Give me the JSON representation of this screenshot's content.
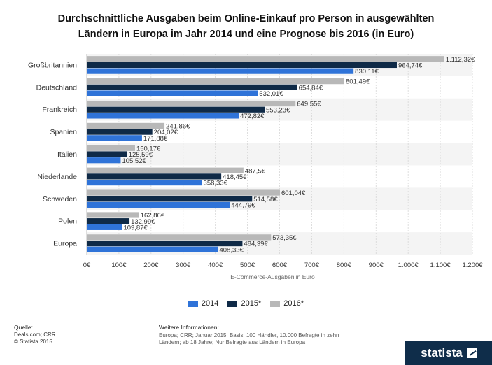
{
  "title": {
    "line1": "Durchschnittliche Ausgaben beim Online-Einkauf pro Person in ausgewählten",
    "line2": "Ländern in Europa im Jahr 2014 und eine Prognose bis 2016 (in Euro)"
  },
  "chart_data": {
    "type": "bar",
    "orientation": "horizontal",
    "categories": [
      "Großbritannien",
      "Deutschland",
      "Frankreich",
      "Spanien",
      "Italien",
      "Niederlande",
      "Schweden",
      "Polen",
      "Europa"
    ],
    "series": [
      {
        "name": "2016*",
        "color": "#b8b8b8",
        "values": [
          1112.32,
          801.49,
          649.55,
          241.86,
          150.17,
          487.5,
          601.04,
          162.86,
          573.35
        ]
      },
      {
        "name": "2015*",
        "color": "#0f2a47",
        "values": [
          964.74,
          654.84,
          553.23,
          204.02,
          125.59,
          418.45,
          514.58,
          132.99,
          484.39
        ]
      },
      {
        "name": "2014",
        "color": "#2f73d8",
        "values": [
          830.11,
          532.01,
          472.82,
          171.88,
          105.52,
          358.33,
          444.79,
          109.87,
          408.33
        ]
      }
    ],
    "value_labels": [
      [
        "1.112,32€",
        "801,49€",
        "649,55€",
        "241,86€",
        "150,17€",
        "487,5€",
        "601,04€",
        "162,86€",
        "573,35€"
      ],
      [
        "964,74€",
        "654,84€",
        "553,23€",
        "204,02€",
        "125,59€",
        "418,45€",
        "514,58€",
        "132,99€",
        "484,39€"
      ],
      [
        "830,11€",
        "532,01€",
        "472,82€",
        "171,88€",
        "105,52€",
        "358,33€",
        "444,79€",
        "109,87€",
        "408,33€"
      ]
    ],
    "xlim": [
      0,
      1200
    ],
    "x_ticks": [
      0,
      100,
      200,
      300,
      400,
      500,
      600,
      700,
      800,
      900,
      1000,
      1100,
      1200
    ],
    "x_tick_labels": [
      "0€",
      "100€",
      "200€",
      "300€",
      "400€",
      "500€",
      "600€",
      "700€",
      "800€",
      "900€",
      "1.000€",
      "1.100€",
      "1.200€"
    ],
    "xlabel": "E-Commerce-Ausgaben in Euro",
    "ylabel": "",
    "grid": true,
    "legend_position": "bottom-center"
  },
  "legend": {
    "items": [
      {
        "label": "2014",
        "color": "#2f73d8"
      },
      {
        "label": "2015*",
        "color": "#0f2a47"
      },
      {
        "label": "2016*",
        "color": "#b8b8b8"
      }
    ]
  },
  "footer": {
    "source_heading": "Quelle:",
    "source_line1": "Deals.com; CRR",
    "source_line2": "© Statista 2015",
    "info_heading": "Weitere Informationen:",
    "info_text": "Europa; CRR; Januar 2015; Basis: 100 Händler, 10.000 Befragte in zehn Ländern; ab 18 Jahre; Nur Befragte aus Ländern in Europa",
    "brand": "statista"
  }
}
